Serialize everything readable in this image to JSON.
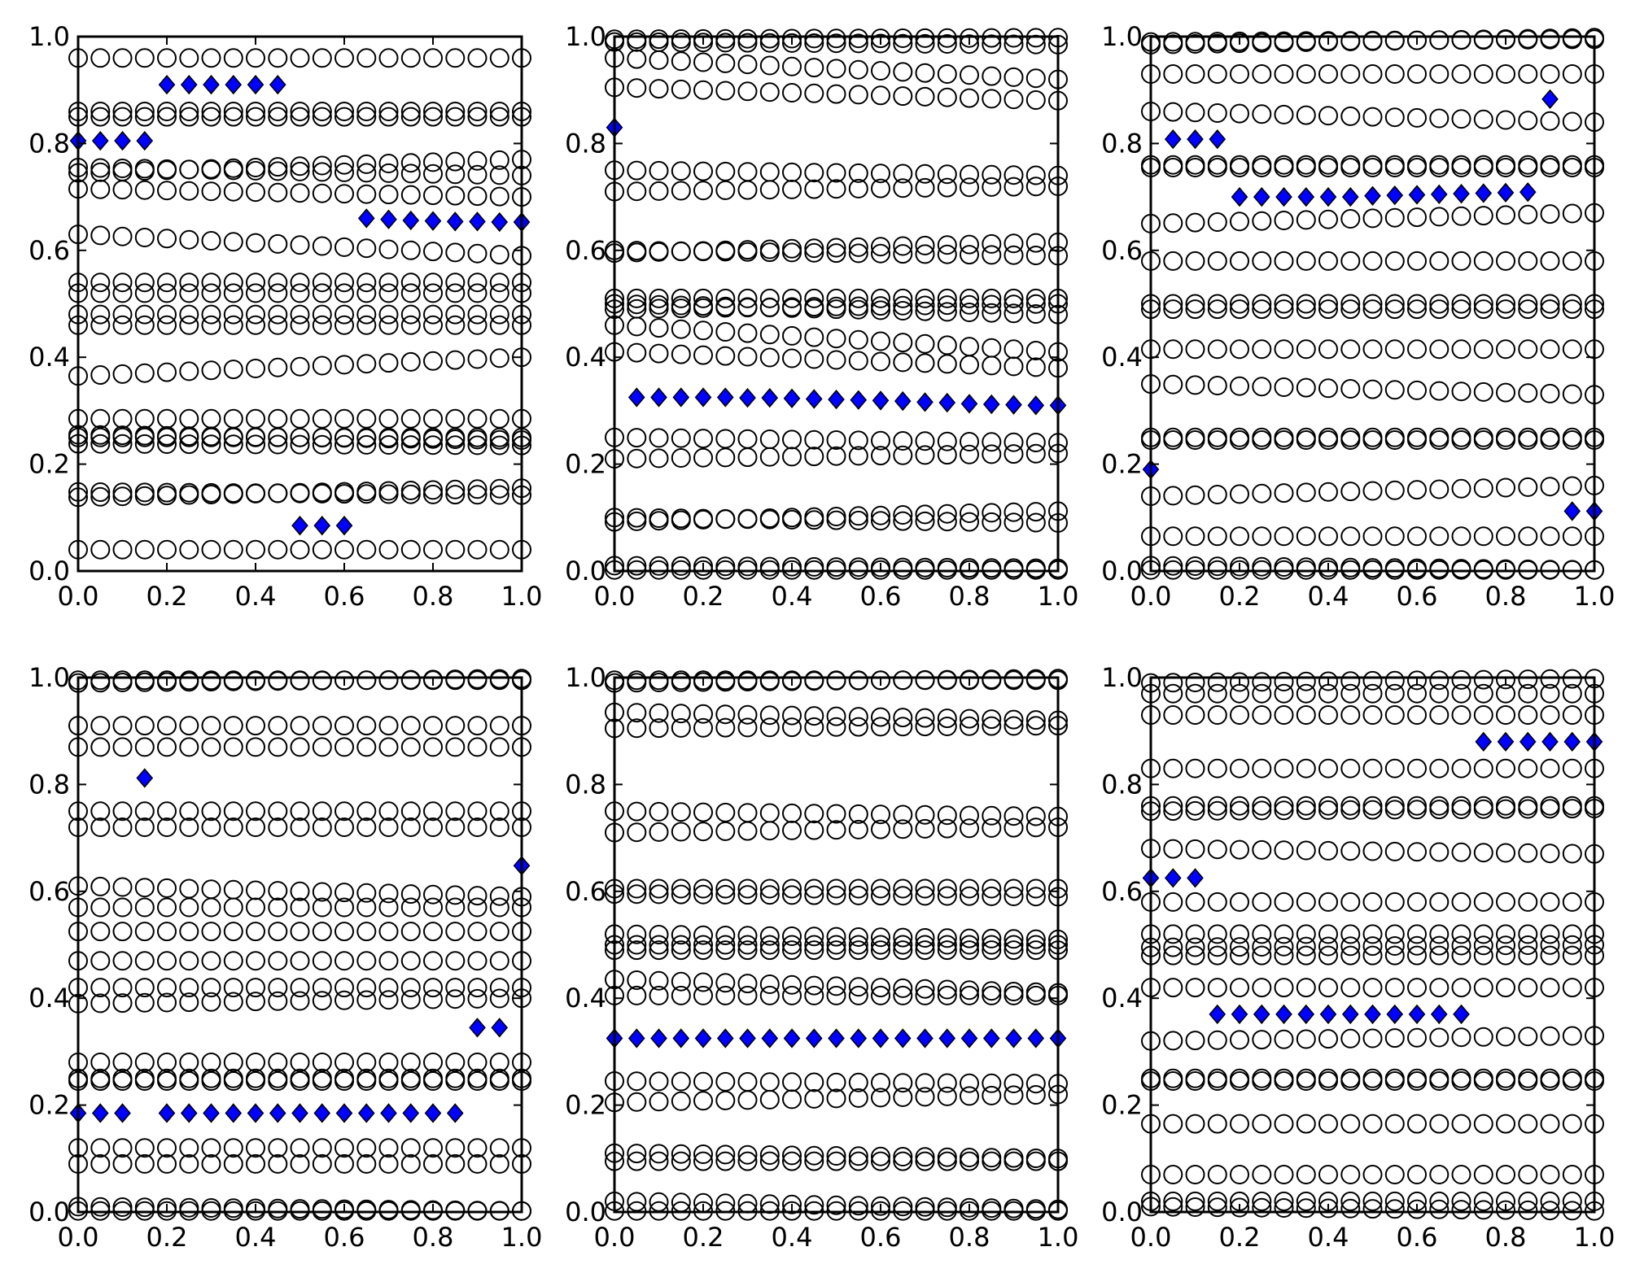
{
  "colors": {
    "background": "#ffffff",
    "axis": "#000000",
    "ring": "#000000",
    "highlight_marker": "#0000ff"
  },
  "chart_data": [
    {
      "type": "scatter",
      "xlim": [
        0,
        1
      ],
      "ylim": [
        0,
        1
      ],
      "xticks": [
        "0.0",
        "0.2",
        "0.4",
        "0.6",
        "0.8",
        "1.0"
      ],
      "yticks": [
        "0.0",
        "0.2",
        "0.4",
        "0.6",
        "0.8",
        "1.0"
      ],
      "grid": false,
      "rings": {
        "x": "0.0 to 1.0 step 0.05",
        "rows": [
          {
            "y0": 0.04,
            "y1": 0.04
          },
          {
            "y0": 0.138,
            "y1": 0.155
          },
          {
            "y0": 0.148,
            "y1": 0.142
          },
          {
            "y0": 0.238,
            "y1": 0.235
          },
          {
            "y0": 0.255,
            "y1": 0.245
          },
          {
            "y0": 0.25,
            "y1": 0.25
          },
          {
            "y0": 0.285,
            "y1": 0.285
          },
          {
            "y0": 0.365,
            "y1": 0.4
          },
          {
            "y0": 0.46,
            "y1": 0.46
          },
          {
            "y0": 0.48,
            "y1": 0.48
          },
          {
            "y0": 0.52,
            "y1": 0.52
          },
          {
            "y0": 0.54,
            "y1": 0.54
          },
          {
            "y0": 0.63,
            "y1": 0.59
          },
          {
            "y0": 0.715,
            "y1": 0.7
          },
          {
            "y0": 0.745,
            "y1": 0.77
          },
          {
            "y0": 0.755,
            "y1": 0.74
          },
          {
            "y0": 0.85,
            "y1": 0.85
          },
          {
            "y0": 0.86,
            "y1": 0.86
          },
          {
            "y0": 0.96,
            "y1": 0.96
          }
        ]
      },
      "highlight": [
        {
          "x": 0.0,
          "y": 0.805
        },
        {
          "x": 0.05,
          "y": 0.805
        },
        {
          "x": 0.1,
          "y": 0.805
        },
        {
          "x": 0.15,
          "y": 0.805
        },
        {
          "x": 0.2,
          "y": 0.91
        },
        {
          "x": 0.25,
          "y": 0.91
        },
        {
          "x": 0.3,
          "y": 0.91
        },
        {
          "x": 0.35,
          "y": 0.91
        },
        {
          "x": 0.4,
          "y": 0.91
        },
        {
          "x": 0.45,
          "y": 0.91
        },
        {
          "x": 0.5,
          "y": 0.085
        },
        {
          "x": 0.55,
          "y": 0.085
        },
        {
          "x": 0.6,
          "y": 0.085
        },
        {
          "x": 0.65,
          "y": 0.66
        },
        {
          "x": 0.7,
          "y": 0.658
        },
        {
          "x": 0.75,
          "y": 0.656
        },
        {
          "x": 0.8,
          "y": 0.655
        },
        {
          "x": 0.85,
          "y": 0.654
        },
        {
          "x": 0.9,
          "y": 0.654
        },
        {
          "x": 0.95,
          "y": 0.653
        },
        {
          "x": 1.0,
          "y": 0.653
        }
      ]
    },
    {
      "type": "scatter",
      "xlim": [
        0,
        1
      ],
      "ylim": [
        0,
        1
      ],
      "xticks": [
        "0.0",
        "0.2",
        "0.4",
        "0.6",
        "0.8",
        "1.0"
      ],
      "yticks": [
        "0.0",
        "0.2",
        "0.4",
        "0.6",
        "0.8",
        "1.0"
      ],
      "grid": false,
      "rings": {
        "x": "0.0 to 1.0 step 0.05",
        "rows": [
          {
            "y0": 0.002,
            "y1": 0.002
          },
          {
            "y0": 0.01,
            "y1": 0.005
          },
          {
            "y0": 0.092,
            "y1": 0.112
          },
          {
            "y0": 0.1,
            "y1": 0.09
          },
          {
            "y0": 0.21,
            "y1": 0.22
          },
          {
            "y0": 0.25,
            "y1": 0.24
          },
          {
            "y0": 0.41,
            "y1": 0.38
          },
          {
            "y0": 0.46,
            "y1": 0.41
          },
          {
            "y0": 0.49,
            "y1": 0.5
          },
          {
            "y0": 0.5,
            "y1": 0.48
          },
          {
            "y0": 0.51,
            "y1": 0.51
          },
          {
            "y0": 0.595,
            "y1": 0.615
          },
          {
            "y0": 0.6,
            "y1": 0.59
          },
          {
            "y0": 0.71,
            "y1": 0.72
          },
          {
            "y0": 0.75,
            "y1": 0.74
          },
          {
            "y0": 0.905,
            "y1": 0.88
          },
          {
            "y0": 0.96,
            "y1": 0.92
          },
          {
            "y0": 0.99,
            "y1": 0.985
          },
          {
            "y0": 0.995,
            "y1": 0.998
          }
        ]
      },
      "highlight": [
        {
          "x": 0.0,
          "y": 0.83
        },
        {
          "x": 0.05,
          "y": 0.325
        },
        {
          "x": 0.1,
          "y": 0.325
        },
        {
          "x": 0.15,
          "y": 0.325
        },
        {
          "x": 0.2,
          "y": 0.325
        },
        {
          "x": 0.25,
          "y": 0.325
        },
        {
          "x": 0.3,
          "y": 0.324
        },
        {
          "x": 0.35,
          "y": 0.324
        },
        {
          "x": 0.4,
          "y": 0.323
        },
        {
          "x": 0.45,
          "y": 0.322
        },
        {
          "x": 0.5,
          "y": 0.321
        },
        {
          "x": 0.55,
          "y": 0.32
        },
        {
          "x": 0.6,
          "y": 0.319
        },
        {
          "x": 0.65,
          "y": 0.318
        },
        {
          "x": 0.7,
          "y": 0.316
        },
        {
          "x": 0.75,
          "y": 0.315
        },
        {
          "x": 0.8,
          "y": 0.313
        },
        {
          "x": 0.85,
          "y": 0.312
        },
        {
          "x": 0.9,
          "y": 0.311
        },
        {
          "x": 0.95,
          "y": 0.31
        },
        {
          "x": 1.0,
          "y": 0.31
        }
      ]
    },
    {
      "type": "scatter",
      "xlim": [
        0,
        1
      ],
      "ylim": [
        0,
        1
      ],
      "xticks": [
        "0.0",
        "0.2",
        "0.4",
        "0.6",
        "0.8",
        "1.0"
      ],
      "yticks": [
        "0.0",
        "0.2",
        "0.4",
        "0.6",
        "0.8",
        "1.0"
      ],
      "grid": false,
      "rings": {
        "x": "0.0 to 1.0 step 0.05",
        "rows": [
          {
            "y0": 0.01,
            "y1": 0.002
          },
          {
            "y0": 0.002,
            "y1": 0.002
          },
          {
            "y0": 0.065,
            "y1": 0.065
          },
          {
            "y0": 0.14,
            "y1": 0.16
          },
          {
            "y0": 0.245,
            "y1": 0.245
          },
          {
            "y0": 0.25,
            "y1": 0.25
          },
          {
            "y0": 0.35,
            "y1": 0.33
          },
          {
            "y0": 0.415,
            "y1": 0.415
          },
          {
            "y0": 0.49,
            "y1": 0.49
          },
          {
            "y0": 0.5,
            "y1": 0.5
          },
          {
            "y0": 0.58,
            "y1": 0.58
          },
          {
            "y0": 0.65,
            "y1": 0.67
          },
          {
            "y0": 0.755,
            "y1": 0.755
          },
          {
            "y0": 0.76,
            "y1": 0.76
          },
          {
            "y0": 0.86,
            "y1": 0.84
          },
          {
            "y0": 0.93,
            "y1": 0.93
          },
          {
            "y0": 0.985,
            "y1": 0.998
          },
          {
            "y0": 0.99,
            "y1": 0.995
          }
        ]
      },
      "highlight": [
        {
          "x": 0.0,
          "y": 0.19
        },
        {
          "x": 0.05,
          "y": 0.808
        },
        {
          "x": 0.1,
          "y": 0.808
        },
        {
          "x": 0.15,
          "y": 0.808
        },
        {
          "x": 0.2,
          "y": 0.7
        },
        {
          "x": 0.25,
          "y": 0.7
        },
        {
          "x": 0.3,
          "y": 0.7
        },
        {
          "x": 0.35,
          "y": 0.7
        },
        {
          "x": 0.4,
          "y": 0.7
        },
        {
          "x": 0.45,
          "y": 0.7
        },
        {
          "x": 0.5,
          "y": 0.702
        },
        {
          "x": 0.55,
          "y": 0.703
        },
        {
          "x": 0.6,
          "y": 0.704
        },
        {
          "x": 0.65,
          "y": 0.705
        },
        {
          "x": 0.7,
          "y": 0.706
        },
        {
          "x": 0.75,
          "y": 0.707
        },
        {
          "x": 0.8,
          "y": 0.708
        },
        {
          "x": 0.85,
          "y": 0.709
        },
        {
          "x": 0.9,
          "y": 0.883
        },
        {
          "x": 0.95,
          "y": 0.112
        },
        {
          "x": 1.0,
          "y": 0.112
        }
      ]
    },
    {
      "type": "scatter",
      "xlim": [
        0,
        1
      ],
      "ylim": [
        0,
        1
      ],
      "xticks": [
        "0.0",
        "0.2",
        "0.4",
        "0.6",
        "0.8",
        "1.0"
      ],
      "yticks": [
        "0.0",
        "0.2",
        "0.4",
        "0.6",
        "0.8",
        "1.0"
      ],
      "grid": false,
      "rings": {
        "x": "0.0 to 1.0 step 0.05",
        "rows": [
          {
            "y0": 0.01,
            "y1": 0.002
          },
          {
            "y0": 0.002,
            "y1": 0.002
          },
          {
            "y0": 0.09,
            "y1": 0.09
          },
          {
            "y0": 0.12,
            "y1": 0.12
          },
          {
            "y0": 0.245,
            "y1": 0.245
          },
          {
            "y0": 0.25,
            "y1": 0.25
          },
          {
            "y0": 0.28,
            "y1": 0.28
          },
          {
            "y0": 0.39,
            "y1": 0.4
          },
          {
            "y0": 0.42,
            "y1": 0.42
          },
          {
            "y0": 0.47,
            "y1": 0.47
          },
          {
            "y0": 0.525,
            "y1": 0.525
          },
          {
            "y0": 0.57,
            "y1": 0.57
          },
          {
            "y0": 0.61,
            "y1": 0.59
          },
          {
            "y0": 0.72,
            "y1": 0.72
          },
          {
            "y0": 0.75,
            "y1": 0.75
          },
          {
            "y0": 0.87,
            "y1": 0.87
          },
          {
            "y0": 0.91,
            "y1": 0.91
          },
          {
            "y0": 0.99,
            "y1": 0.998
          },
          {
            "y0": 0.995,
            "y1": 0.995
          }
        ]
      },
      "highlight": [
        {
          "x": 0.0,
          "y": 0.185
        },
        {
          "x": 0.05,
          "y": 0.185
        },
        {
          "x": 0.1,
          "y": 0.185
        },
        {
          "x": 0.15,
          "y": 0.812
        },
        {
          "x": 0.2,
          "y": 0.185
        },
        {
          "x": 0.25,
          "y": 0.185
        },
        {
          "x": 0.3,
          "y": 0.185
        },
        {
          "x": 0.35,
          "y": 0.185
        },
        {
          "x": 0.4,
          "y": 0.185
        },
        {
          "x": 0.45,
          "y": 0.185
        },
        {
          "x": 0.5,
          "y": 0.185
        },
        {
          "x": 0.55,
          "y": 0.185
        },
        {
          "x": 0.6,
          "y": 0.185
        },
        {
          "x": 0.65,
          "y": 0.185
        },
        {
          "x": 0.7,
          "y": 0.185
        },
        {
          "x": 0.75,
          "y": 0.185
        },
        {
          "x": 0.8,
          "y": 0.185
        },
        {
          "x": 0.85,
          "y": 0.185
        },
        {
          "x": 0.9,
          "y": 0.345
        },
        {
          "x": 0.95,
          "y": 0.345
        },
        {
          "x": 1.0,
          "y": 0.648
        }
      ]
    },
    {
      "type": "scatter",
      "xlim": [
        0,
        1
      ],
      "ylim": [
        0,
        1
      ],
      "xticks": [
        "0.0",
        "0.2",
        "0.4",
        "0.6",
        "0.8",
        "1.0"
      ],
      "yticks": [
        "0.0",
        "0.2",
        "0.4",
        "0.6",
        "0.8",
        "1.0"
      ],
      "grid": false,
      "rings": {
        "x": "0.0 to 1.0 step 0.05",
        "rows": [
          {
            "y0": 0.002,
            "y1": 0.002
          },
          {
            "y0": 0.02,
            "y1": 0.005
          },
          {
            "y0": 0.095,
            "y1": 0.095
          },
          {
            "y0": 0.11,
            "y1": 0.1
          },
          {
            "y0": 0.205,
            "y1": 0.22
          },
          {
            "y0": 0.245,
            "y1": 0.24
          },
          {
            "y0": 0.405,
            "y1": 0.405
          },
          {
            "y0": 0.435,
            "y1": 0.41
          },
          {
            "y0": 0.49,
            "y1": 0.49
          },
          {
            "y0": 0.5,
            "y1": 0.5
          },
          {
            "y0": 0.52,
            "y1": 0.51
          },
          {
            "y0": 0.595,
            "y1": 0.59
          },
          {
            "y0": 0.605,
            "y1": 0.605
          },
          {
            "y0": 0.71,
            "y1": 0.72
          },
          {
            "y0": 0.75,
            "y1": 0.74
          },
          {
            "y0": 0.905,
            "y1": 0.91
          },
          {
            "y0": 0.935,
            "y1": 0.92
          },
          {
            "y0": 0.99,
            "y1": 0.998
          },
          {
            "y0": 0.995,
            "y1": 0.995
          }
        ]
      },
      "highlight": [
        {
          "x": 0.0,
          "y": 0.325
        },
        {
          "x": 0.05,
          "y": 0.325
        },
        {
          "x": 0.1,
          "y": 0.325
        },
        {
          "x": 0.15,
          "y": 0.325
        },
        {
          "x": 0.2,
          "y": 0.325
        },
        {
          "x": 0.25,
          "y": 0.325
        },
        {
          "x": 0.3,
          "y": 0.325
        },
        {
          "x": 0.35,
          "y": 0.325
        },
        {
          "x": 0.4,
          "y": 0.325
        },
        {
          "x": 0.45,
          "y": 0.325
        },
        {
          "x": 0.5,
          "y": 0.325
        },
        {
          "x": 0.55,
          "y": 0.325
        },
        {
          "x": 0.6,
          "y": 0.325
        },
        {
          "x": 0.65,
          "y": 0.325
        },
        {
          "x": 0.7,
          "y": 0.325
        },
        {
          "x": 0.75,
          "y": 0.325
        },
        {
          "x": 0.8,
          "y": 0.325
        },
        {
          "x": 0.85,
          "y": 0.325
        },
        {
          "x": 0.9,
          "y": 0.325
        },
        {
          "x": 0.95,
          "y": 0.325
        },
        {
          "x": 1.0,
          "y": 0.325
        }
      ]
    },
    {
      "type": "scatter",
      "xlim": [
        0,
        1
      ],
      "ylim": [
        0,
        1
      ],
      "xticks": [
        "0.0",
        "0.2",
        "0.4",
        "0.6",
        "0.8",
        "1.0"
      ],
      "yticks": [
        "0.0",
        "0.2",
        "0.4",
        "0.6",
        "0.8",
        "1.0"
      ],
      "grid": false,
      "rings": {
        "x": "0.0 to 1.0 step 0.05",
        "rows": [
          {
            "y0": 0.02,
            "y1": 0.02
          },
          {
            "y0": 0.01,
            "y1": 0.002
          },
          {
            "y0": 0.07,
            "y1": 0.07
          },
          {
            "y0": 0.165,
            "y1": 0.165
          },
          {
            "y0": 0.245,
            "y1": 0.245
          },
          {
            "y0": 0.25,
            "y1": 0.25
          },
          {
            "y0": 0.32,
            "y1": 0.33
          },
          {
            "y0": 0.42,
            "y1": 0.42
          },
          {
            "y0": 0.48,
            "y1": 0.48
          },
          {
            "y0": 0.495,
            "y1": 0.5
          },
          {
            "y0": 0.52,
            "y1": 0.52
          },
          {
            "y0": 0.58,
            "y1": 0.58
          },
          {
            "y0": 0.68,
            "y1": 0.67
          },
          {
            "y0": 0.75,
            "y1": 0.755
          },
          {
            "y0": 0.76,
            "y1": 0.76
          },
          {
            "y0": 0.83,
            "y1": 0.83
          },
          {
            "y0": 0.93,
            "y1": 0.93
          },
          {
            "y0": 0.97,
            "y1": 0.97
          },
          {
            "y0": 0.99,
            "y1": 0.998
          }
        ]
      },
      "highlight": [
        {
          "x": 0.0,
          "y": 0.625
        },
        {
          "x": 0.05,
          "y": 0.625
        },
        {
          "x": 0.1,
          "y": 0.625
        },
        {
          "x": 0.15,
          "y": 0.37
        },
        {
          "x": 0.2,
          "y": 0.37
        },
        {
          "x": 0.25,
          "y": 0.37
        },
        {
          "x": 0.3,
          "y": 0.37
        },
        {
          "x": 0.35,
          "y": 0.37
        },
        {
          "x": 0.4,
          "y": 0.37
        },
        {
          "x": 0.45,
          "y": 0.37
        },
        {
          "x": 0.5,
          "y": 0.37
        },
        {
          "x": 0.55,
          "y": 0.37
        },
        {
          "x": 0.6,
          "y": 0.37
        },
        {
          "x": 0.65,
          "y": 0.37
        },
        {
          "x": 0.7,
          "y": 0.37
        },
        {
          "x": 0.75,
          "y": 0.88
        },
        {
          "x": 0.8,
          "y": 0.88
        },
        {
          "x": 0.85,
          "y": 0.88
        },
        {
          "x": 0.9,
          "y": 0.88
        },
        {
          "x": 0.95,
          "y": 0.88
        },
        {
          "x": 1.0,
          "y": 0.88
        }
      ]
    }
  ]
}
